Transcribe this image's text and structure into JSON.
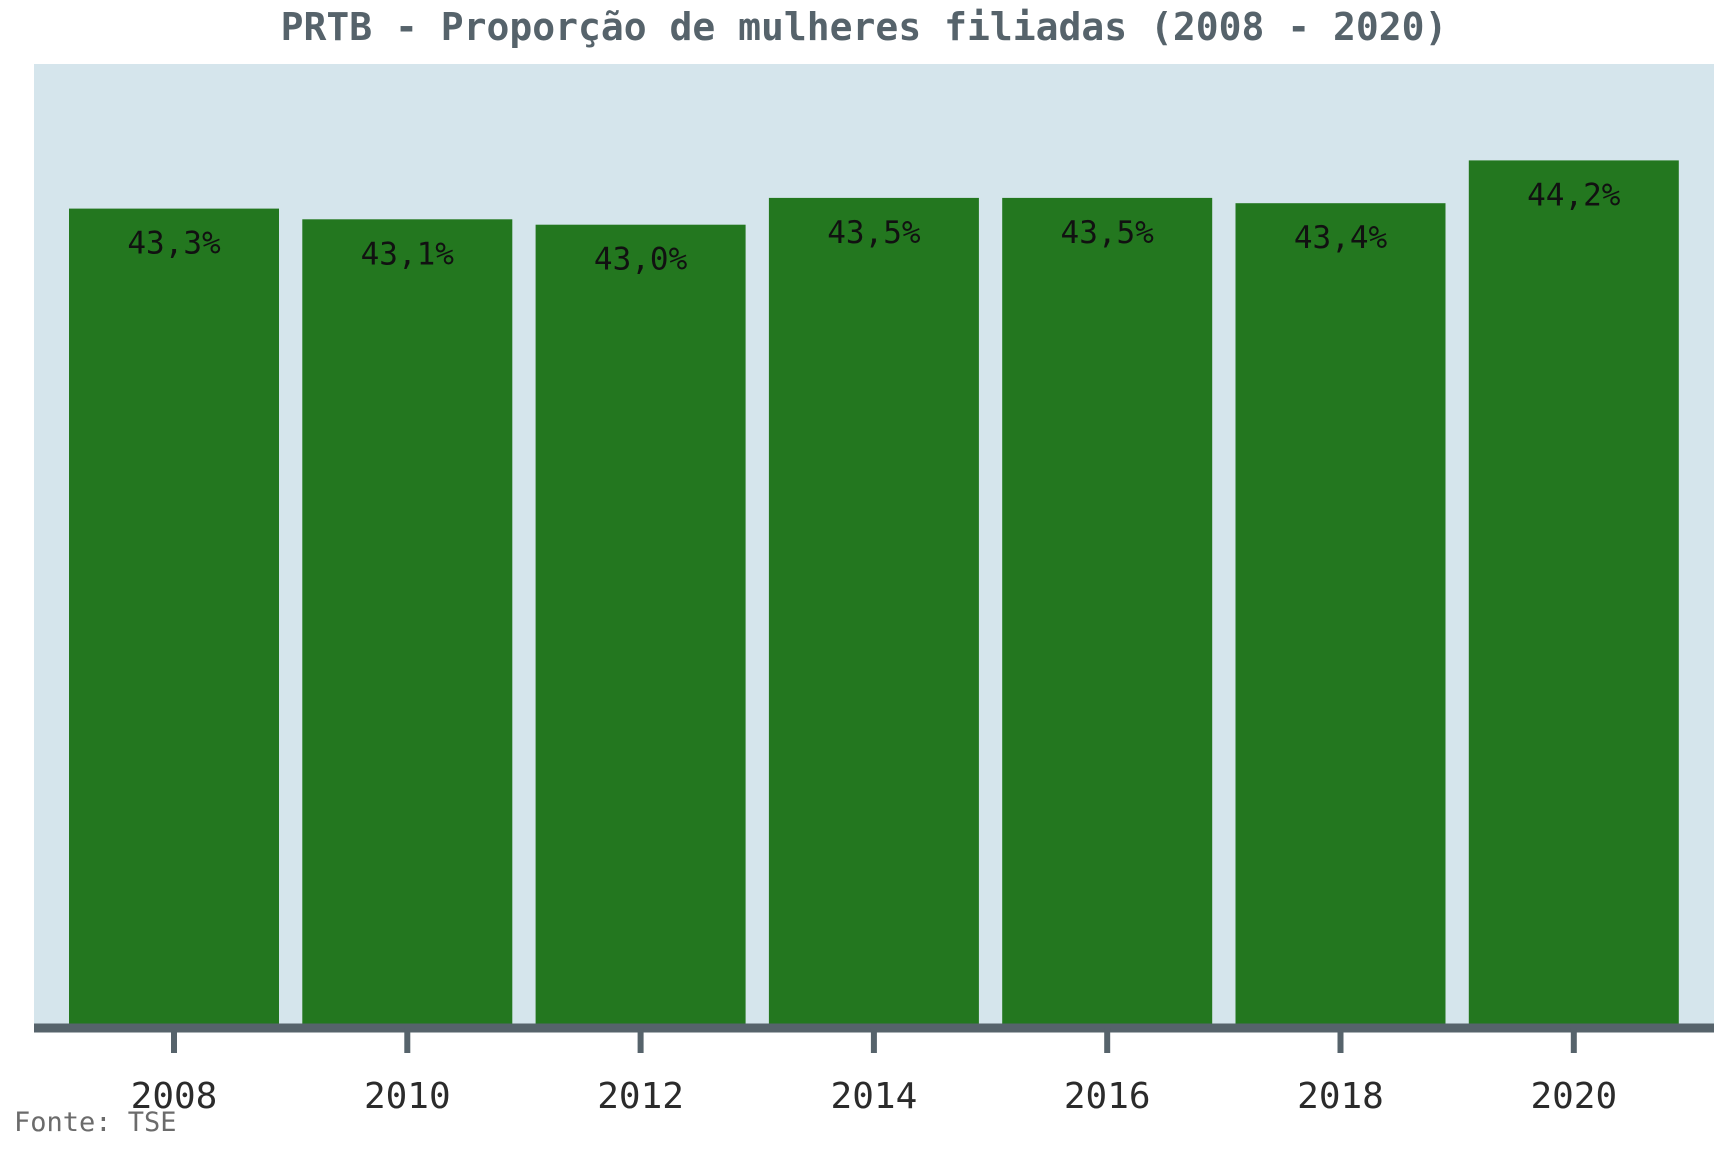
{
  "chart_data": {
    "type": "bar",
    "title": "PRTB - Proporção de mulheres filiadas (2008 - 2020)",
    "categories": [
      "2008",
      "2010",
      "2012",
      "2014",
      "2016",
      "2018",
      "2020"
    ],
    "values": [
      43.3,
      43.1,
      43.0,
      43.5,
      43.5,
      43.4,
      44.2
    ],
    "data_labels": [
      "43,3%",
      "43,1%",
      "43,0%",
      "43,5%",
      "43,5%",
      "43,4%",
      "44,2%"
    ],
    "xlabel": "",
    "ylabel": "",
    "ylim": [
      28.0,
      46.0
    ],
    "grid": false,
    "legend": "none"
  },
  "source": "Fonte: TSE",
  "colors": {
    "bar": "#23771f",
    "plot_background": "#d5e5ec",
    "axis": "#56636b",
    "title": "#56636b"
  }
}
